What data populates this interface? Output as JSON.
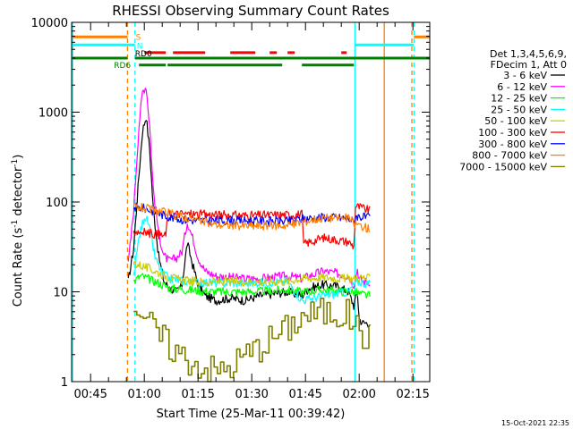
{
  "chart_data": {
    "type": "line",
    "title": "RHESSI Observing Summary Count Rates",
    "xlabel": "Start Time (25-Mar-11 00:39:42)",
    "ylabel": "Count Rate (s⁻¹ detector⁻¹)",
    "ylabel_main": "Count Rate (s",
    "ylabel_sup1": "-1",
    "ylabel_mid": " detector",
    "ylabel_sup2": "-1",
    "ylabel_end": ")",
    "yscale": "log",
    "ylim": [
      1,
      10000
    ],
    "xlim_min": [
      39.7,
      139.7
    ],
    "x_ticks": [
      {
        "min": 45,
        "label": "00:45"
      },
      {
        "min": 60,
        "label": "01:00"
      },
      {
        "min": 75,
        "label": "01:15"
      },
      {
        "min": 90,
        "label": "01:30"
      },
      {
        "min": 105,
        "label": "01:45"
      },
      {
        "min": 120,
        "label": "02:00"
      },
      {
        "min": 135,
        "label": "02:15"
      }
    ],
    "y_ticks": [
      {
        "value": 1,
        "label": "1"
      },
      {
        "value": 10,
        "label": "10"
      },
      {
        "value": 100,
        "label": "100"
      },
      {
        "value": 1000,
        "label": "1000"
      },
      {
        "value": 10000,
        "label": "10000"
      }
    ],
    "legend_header": [
      "Det 1,3,4,5,6,9,",
      "FDecim 1, Att 0"
    ],
    "legend_position": "right",
    "footer_date": "15-Oct-2021 22:35",
    "series": [
      {
        "name": "3 - 6 keV",
        "color": "#000000",
        "x": [
          55.5,
          57,
          58.5,
          59.5,
          60.5,
          61.5,
          62.5,
          64,
          65.5,
          67,
          69,
          70.5,
          72,
          73.5,
          75,
          77,
          80,
          84,
          88,
          92,
          96,
          100,
          104,
          106,
          110,
          114,
          117,
          118.5,
          119.5,
          120,
          121,
          123
        ],
        "y": [
          13,
          30,
          200,
          620,
          900,
          380,
          85,
          25,
          13,
          11,
          10,
          12,
          35,
          20,
          12,
          9,
          8,
          8.5,
          8,
          9,
          9.5,
          10,
          9,
          11,
          12,
          11.5,
          10,
          7,
          10,
          5,
          4.5,
          4.5
        ]
      },
      {
        "name": "6 - 12 keV",
        "color": "#ff00ff",
        "x": [
          55.5,
          57,
          58.5,
          59.5,
          60.5,
          61.5,
          62.5,
          64,
          65.5,
          67,
          69,
          70.5,
          72,
          73.5,
          75,
          77,
          80,
          84,
          88,
          92,
          96,
          100,
          104,
          106,
          110,
          114,
          117,
          118.5,
          119.5,
          120,
          121,
          123
        ],
        "y": [
          20,
          80,
          700,
          1700,
          1950,
          700,
          140,
          45,
          25,
          22,
          24,
          28,
          60,
          40,
          24,
          17,
          15,
          14.5,
          14,
          14,
          14.5,
          15,
          14,
          15,
          17,
          16,
          15,
          12,
          18,
          14,
          13,
          13
        ]
      },
      {
        "name": "12 - 25 keV",
        "color": "#00ff00",
        "x": [
          57,
          59,
          61,
          63,
          65,
          67,
          72,
          80,
          90,
          100,
          104,
          110,
          117,
          118.5,
          120,
          123
        ],
        "y": [
          13,
          15,
          14,
          13,
          12,
          11,
          10.5,
          10,
          10,
          10.5,
          10,
          10.5,
          10,
          10,
          9.5,
          9
        ]
      },
      {
        "name": "25 - 50 keV",
        "color": "#00ffff",
        "x": [
          57,
          58.5,
          60,
          61,
          62,
          63,
          65,
          67,
          72,
          80,
          90,
          100,
          104,
          110,
          117,
          118.5,
          120,
          123
        ],
        "y": [
          14,
          40,
          70,
          60,
          40,
          24,
          16,
          14,
          13,
          12.5,
          12.5,
          13,
          8,
          9,
          10,
          12,
          13,
          12
        ]
      },
      {
        "name": "50 - 100 keV",
        "color": "#cccc00",
        "x": [
          57,
          60,
          63,
          66,
          70,
          75,
          80,
          90,
          100,
          103,
          104,
          110,
          117,
          118.5,
          120,
          123
        ],
        "y": [
          21,
          19,
          17,
          15,
          13.5,
          13,
          13,
          13,
          13,
          14,
          14,
          14.5,
          14,
          14,
          14.5,
          14
        ]
      },
      {
        "name": "100 - 300 keV",
        "color": "#ff0000",
        "x": [
          57,
          60,
          63,
          66,
          66.5,
          70,
          75,
          80,
          90,
          100,
          104,
          104.5,
          110,
          117,
          118.5,
          119,
          120,
          123
        ],
        "y": [
          48,
          46,
          44,
          42,
          72,
          74,
          73,
          72,
          71,
          72,
          73,
          34,
          40,
          36,
          32,
          90,
          88,
          80
        ]
      },
      {
        "name": "300 - 800 keV",
        "color": "#0000ff",
        "x": [
          57,
          60,
          63,
          66,
          70,
          75,
          80,
          90,
          100,
          104,
          110,
          117,
          118.5,
          119,
          123
        ],
        "y": [
          88,
          85,
          78,
          70,
          64,
          62,
          62,
          62,
          61,
          65,
          68,
          66,
          60,
          70,
          66
        ]
      },
      {
        "name": "800 - 7000 keV",
        "color": "#ff8000",
        "x": [
          57,
          60,
          63,
          66,
          70,
          75,
          80,
          90,
          100,
          104,
          110,
          117,
          118.5,
          120,
          123
        ],
        "y": [
          90,
          85,
          80,
          76,
          70,
          62,
          56,
          54,
          55,
          60,
          67,
          66,
          58,
          55,
          50
        ]
      },
      {
        "name": "7000 - 15000 keV",
        "color": "#808000",
        "x": [
          57,
          59,
          61,
          63,
          65,
          67,
          70,
          73,
          76,
          80,
          84,
          88,
          92,
          96,
          100,
          104,
          110,
          117,
          118.5,
          120,
          123
        ],
        "y": [
          7.5,
          6,
          4.5,
          3.5,
          3.0,
          2.5,
          2.0,
          1.7,
          1.5,
          1.3,
          1.5,
          2.0,
          2.5,
          3.2,
          4.0,
          5.5,
          6.0,
          5.5,
          4.5,
          3.5,
          3.0
        ]
      }
    ],
    "annotations": [
      {
        "label": "S",
        "color": "#ff8000",
        "y": 7000
      },
      {
        "label": "N",
        "color": "#00ffff",
        "y": 5600
      },
      {
        "label": "RD0",
        "color": "#000000",
        "y": 4600
      },
      {
        "label": "RD6",
        "color": "#008000",
        "y": 3400
      }
    ],
    "vertical_lines": [
      {
        "min": 40.0,
        "color": "#00ffff",
        "style": "solid"
      },
      {
        "min": 55.3,
        "color": "#ff8000",
        "style": "dashed"
      },
      {
        "min": 57.4,
        "color": "#00ffff",
        "style": "dashed"
      },
      {
        "min": 118.8,
        "color": "#00ffff",
        "style": "solid"
      },
      {
        "min": 127.0,
        "color": "#ff8000",
        "style": "solid"
      },
      {
        "min": 134.7,
        "color": "#ff8000",
        "style": "dashed"
      },
      {
        "min": 135.3,
        "color": "#00ffff",
        "style": "dashed"
      }
    ],
    "status_bars": [
      {
        "name": "saa",
        "color": "#ff8000",
        "y": 6900,
        "segments": [
          [
            40,
            55.3
          ],
          [
            135.3,
            139.7
          ]
        ]
      },
      {
        "name": "night",
        "color": "#00ffff",
        "y": 5600,
        "segments": [
          [
            40,
            57.4
          ],
          [
            118.8,
            135.3
          ]
        ]
      },
      {
        "name": "rd0-flag",
        "color": "#ff0000",
        "y": 4600,
        "segments": [
          [
            60,
            66
          ],
          [
            68,
            77
          ],
          [
            84,
            91
          ],
          [
            95,
            97
          ],
          [
            100,
            102
          ],
          [
            115,
            116.5
          ]
        ]
      },
      {
        "name": "rd6-flag",
        "color": "#008000",
        "y": 4000,
        "segments": [
          [
            40,
            55.3
          ],
          [
            57.4,
            139.7
          ]
        ]
      },
      {
        "name": "rd6-flag-2",
        "color": "#008000",
        "y": 3350,
        "segments": [
          [
            58.5,
            66
          ],
          [
            66.5,
            98.5
          ],
          [
            104,
            118.5
          ]
        ]
      }
    ]
  }
}
